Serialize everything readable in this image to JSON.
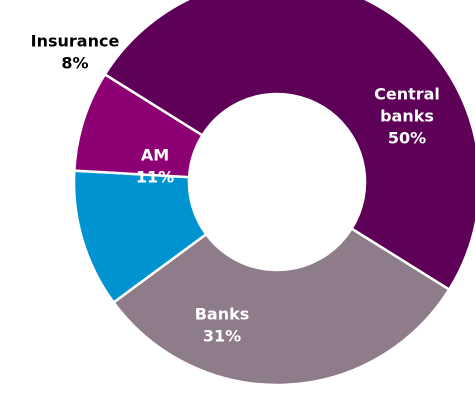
{
  "chart_data": {
    "type": "pie",
    "donut": true,
    "start_angle_deg": 150,
    "direction": "clockwise",
    "slices": [
      {
        "label_lines": [
          "Central",
          "banks"
        ],
        "value": 50,
        "value_label": "50%",
        "color": "#5e0058",
        "label_color": "#ffffff"
      },
      {
        "label_lines": [
          "Banks"
        ],
        "value": 31,
        "value_label": "31%",
        "color": "#8f7c8a",
        "label_color": "#ffffff"
      },
      {
        "label_lines": [
          "AM"
        ],
        "value": 11,
        "value_label": "11%",
        "color": "#0093d1",
        "label_color": "#ffffff"
      },
      {
        "label_lines": [
          "Insurance"
        ],
        "value": 8,
        "value_label": "8%",
        "color": "#8c0073",
        "label_color": "#000000"
      }
    ]
  }
}
